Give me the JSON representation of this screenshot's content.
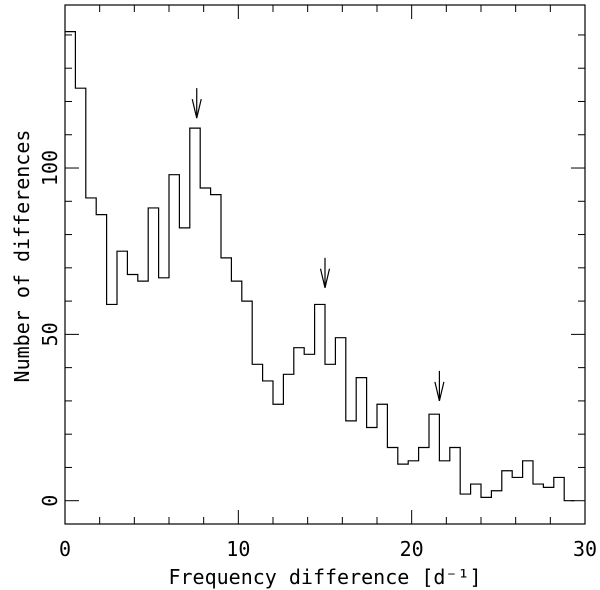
{
  "chart_data": {
    "type": "histogram",
    "title": "",
    "xlabel": "Frequency difference [d⁻¹]",
    "ylabel": "Number of differences",
    "xlim": [
      0,
      30
    ],
    "ylim": [
      -7,
      149
    ],
    "bin_width": 0.6,
    "bin_starts": [
      0.0,
      0.6,
      1.2,
      1.8,
      2.4,
      3.0,
      3.6,
      4.2,
      4.8,
      5.4,
      6.0,
      6.6,
      7.2,
      7.8,
      8.4,
      9.0,
      9.6,
      10.2,
      10.8,
      11.4,
      12.0,
      12.6,
      13.2,
      13.8,
      14.4,
      15.0,
      15.6,
      16.2,
      16.8,
      17.4,
      18.0,
      18.6,
      19.2,
      19.8,
      20.4,
      21.0,
      21.6,
      22.2,
      22.8,
      23.4,
      24.0,
      24.6,
      25.2,
      25.8,
      26.4,
      27.0,
      27.6,
      28.2,
      28.8
    ],
    "values": [
      141,
      124,
      91,
      86,
      59,
      75,
      68,
      66,
      88,
      67,
      98,
      82,
      112,
      94,
      92,
      73,
      66,
      60,
      41,
      36,
      29,
      38,
      46,
      44,
      59,
      41,
      49,
      24,
      37,
      22,
      29,
      16,
      11,
      12,
      16,
      26,
      12,
      16,
      2,
      5,
      1,
      3,
      9,
      7,
      12,
      5,
      4,
      7,
      0
    ],
    "x_ticks": [
      "0",
      "10",
      "20",
      "30"
    ],
    "x_tick_values": [
      0,
      10,
      20,
      30
    ],
    "y_ticks": [
      "0",
      "50",
      "100"
    ],
    "y_tick_values": [
      0,
      50,
      100
    ],
    "annotations": [
      {
        "type": "arrow",
        "x": 7.6,
        "y_tip": 115
      },
      {
        "type": "arrow",
        "x": 15.0,
        "y_tip": 64
      },
      {
        "type": "arrow",
        "x": 21.6,
        "y_tip": 30
      }
    ]
  }
}
